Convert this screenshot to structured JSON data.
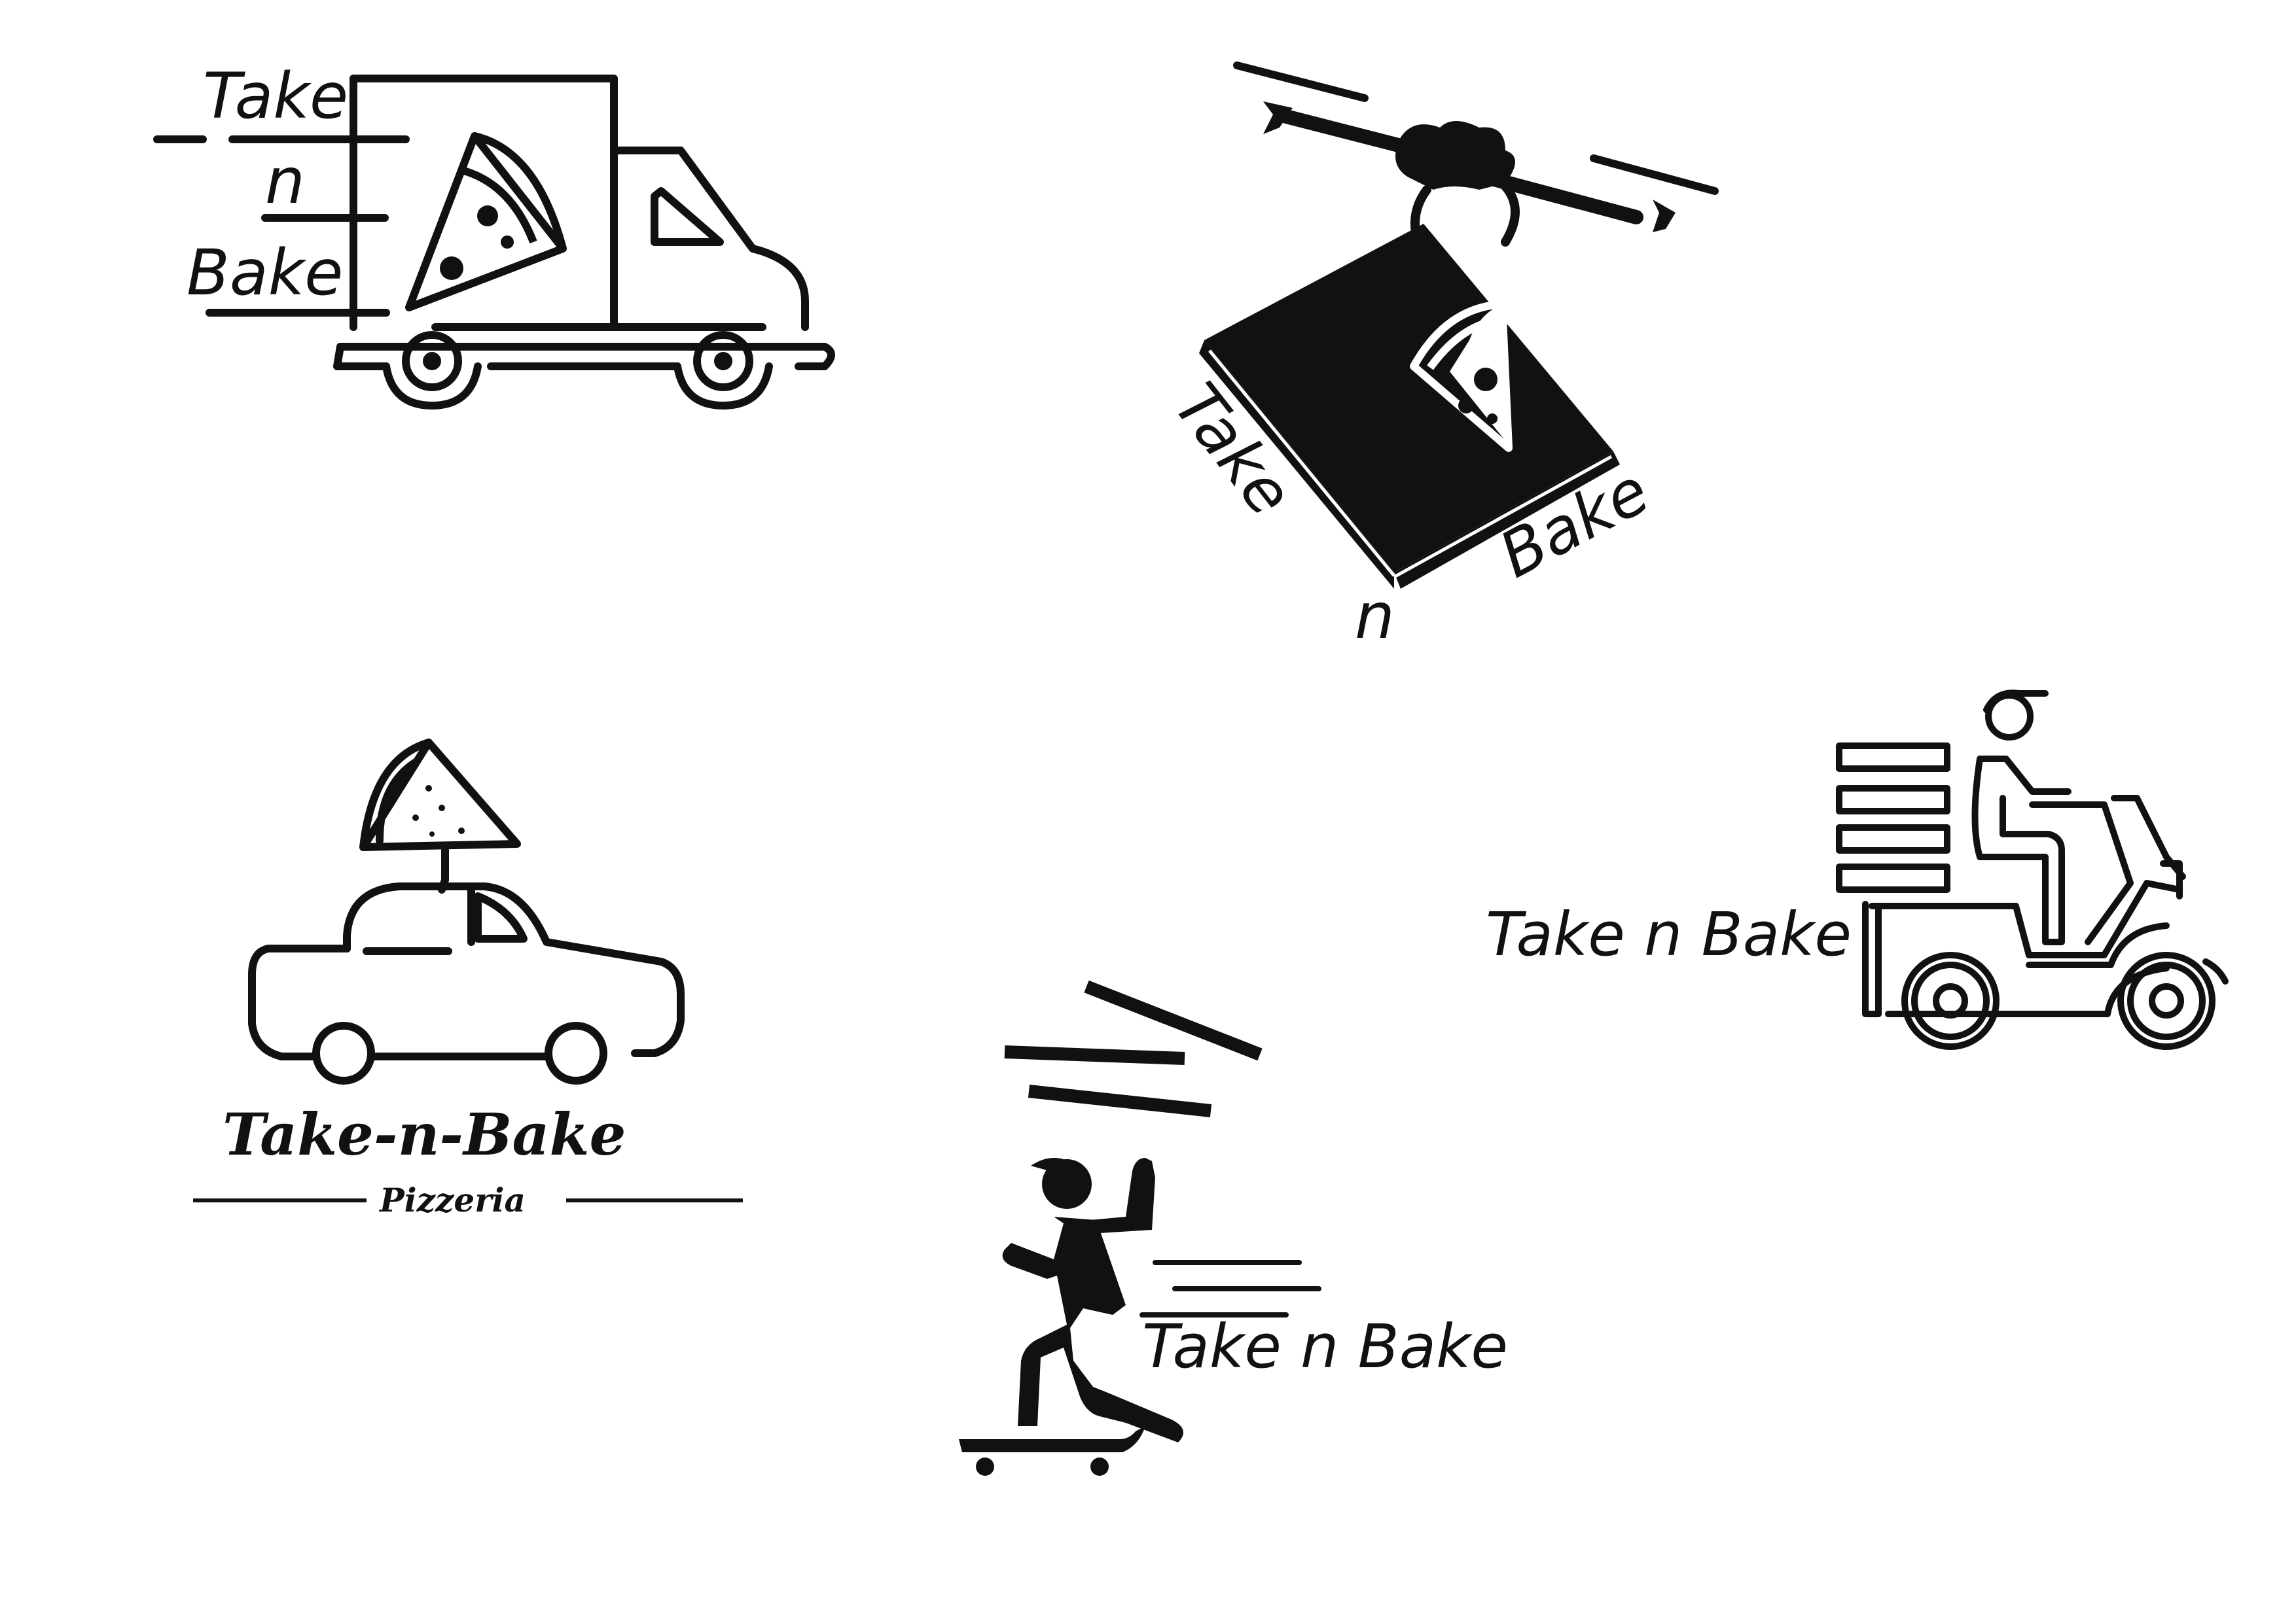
{
  "colors": {
    "ink": "#111111",
    "background": "#ffffff"
  },
  "logos": {
    "truck": {
      "take": "Take",
      "n": "n",
      "bake": "Bake"
    },
    "drone": {
      "take": "Take",
      "n": "n",
      "bake": "Bake"
    },
    "car": {
      "wordmark": "Take-n-Bake",
      "tagline": "Pizzeria"
    },
    "scooter": {
      "wordmark": "Take n Bake"
    },
    "skater": {
      "wordmark": "Take n Bake"
    }
  }
}
